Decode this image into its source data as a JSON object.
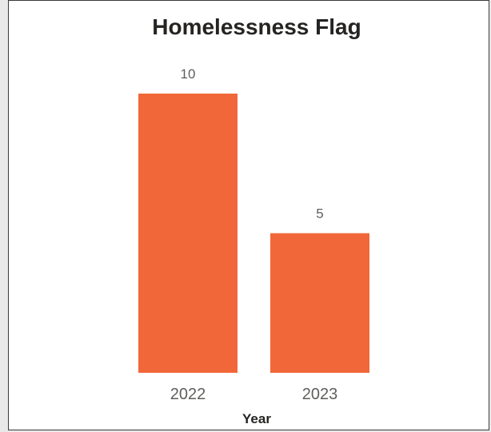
{
  "colors": {
    "bar": "#F26739",
    "background": "#FFFFFF",
    "border": "#3A3A3A"
  },
  "chart_data": {
    "type": "bar",
    "title": "Homelessness Flag",
    "xlabel": "Year",
    "ylabel": "",
    "categories": [
      "2022",
      "2023"
    ],
    "values": [
      10,
      5
    ],
    "data_labels": [
      "10",
      "5"
    ],
    "ylim": [
      0,
      10
    ],
    "grid": false,
    "legend": "none",
    "y_axis_visible": false
  }
}
